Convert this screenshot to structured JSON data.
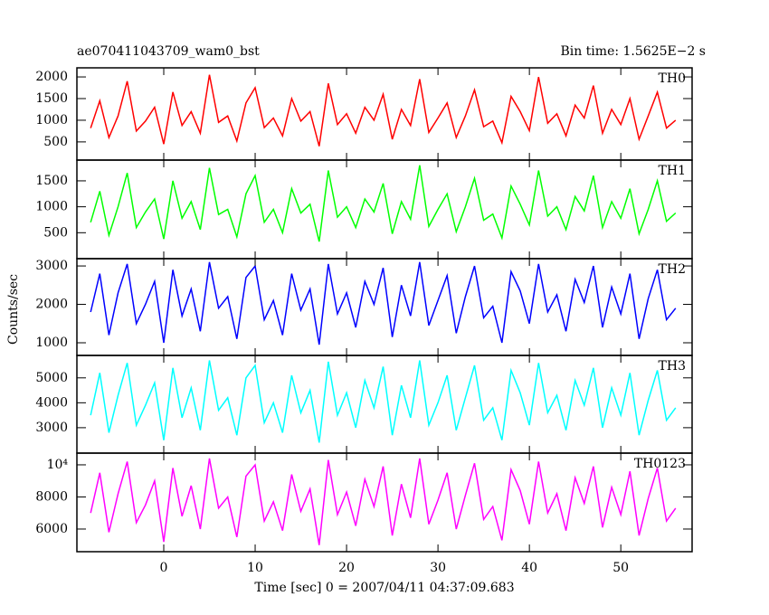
{
  "title": "ae070411043709_wam0_bst",
  "bin_time": "Bin time: 1.5625E−2 s",
  "ylabel": "Counts/sec",
  "xlabel": "Time [sec] 0 = 2007/04/11 04:37:09.683",
  "chart_data": [
    {
      "type": "line",
      "x": [
        -8,
        -7,
        -6,
        -5,
        -4,
        -3,
        -2,
        -1,
        0,
        1,
        2,
        3,
        4,
        5,
        6,
        7,
        8,
        9,
        10,
        11,
        12,
        13,
        14,
        15,
        16,
        17,
        18,
        19,
        20,
        21,
        22,
        23,
        24,
        25,
        26,
        27,
        28,
        29,
        30,
        31,
        32,
        33,
        34,
        35,
        36,
        37,
        38,
        39,
        40,
        41,
        42,
        43,
        44,
        45,
        46,
        47,
        48,
        49,
        50,
        51,
        52,
        53,
        54,
        55,
        56
      ],
      "series": [
        {
          "name": "TH0",
          "color": "#ff0000",
          "values": [
            820,
            1450,
            600,
            1100,
            1900,
            750,
            980,
            1300,
            450,
            1650,
            880,
            1200,
            700,
            2050,
            950,
            1100,
            520,
            1400,
            1750,
            830,
            1050,
            640,
            1500,
            980,
            1200,
            400,
            1850,
            900,
            1150,
            700,
            1300,
            1000,
            1600,
            560,
            1250,
            880,
            1950,
            720,
            1050,
            1400,
            600,
            1100,
            1700,
            850,
            980,
            480,
            1550,
            1200,
            760,
            2000,
            930,
            1150,
            640,
            1350,
            1050,
            1800,
            700,
            1250,
            900,
            1500,
            560,
            1100,
            1650,
            820,
            1000
          ]
        }
      ],
      "xlim": [
        -9.5,
        57.8
      ],
      "xticks": [
        0,
        10,
        20,
        30,
        40,
        50
      ],
      "ylim": [
        80,
        2210
      ],
      "yticks": [
        500,
        1000,
        1500,
        2000
      ]
    },
    {
      "type": "line",
      "x": [
        -8,
        -7,
        -6,
        -5,
        -4,
        -3,
        -2,
        -1,
        0,
        1,
        2,
        3,
        4,
        5,
        6,
        7,
        8,
        9,
        10,
        11,
        12,
        13,
        14,
        15,
        16,
        17,
        18,
        19,
        20,
        21,
        22,
        23,
        24,
        25,
        26,
        27,
        28,
        29,
        30,
        31,
        32,
        33,
        34,
        35,
        36,
        37,
        38,
        39,
        40,
        41,
        42,
        43,
        44,
        45,
        46,
        47,
        48,
        49,
        50,
        51,
        52,
        53,
        54,
        55,
        56
      ],
      "series": [
        {
          "name": "TH1",
          "color": "#00ff00",
          "values": [
            700,
            1300,
            450,
            1000,
            1650,
            600,
            900,
            1150,
            380,
            1500,
            780,
            1100,
            560,
            1750,
            850,
            950,
            420,
            1250,
            1600,
            700,
            950,
            500,
            1350,
            880,
            1050,
            330,
            1700,
            800,
            1000,
            600,
            1150,
            900,
            1450,
            480,
            1100,
            760,
            1800,
            620,
            950,
            1250,
            520,
            1000,
            1550,
            740,
            860,
            400,
            1400,
            1050,
            650,
            1700,
            820,
            1000,
            560,
            1200,
            920,
            1600,
            600,
            1100,
            780,
            1350,
            480,
            950,
            1500,
            720,
            880
          ]
        }
      ],
      "xlim": [
        -9.5,
        57.8
      ],
      "xticks": [
        0,
        10,
        20,
        30,
        40,
        50
      ],
      "ylim": [
        0,
        1900
      ],
      "yticks": [
        500,
        1000,
        1500
      ]
    },
    {
      "type": "line",
      "x": [
        -8,
        -7,
        -6,
        -5,
        -4,
        -3,
        -2,
        -1,
        0,
        1,
        2,
        3,
        4,
        5,
        6,
        7,
        8,
        9,
        10,
        11,
        12,
        13,
        14,
        15,
        16,
        17,
        18,
        19,
        20,
        21,
        22,
        23,
        24,
        25,
        26,
        27,
        28,
        29,
        30,
        31,
        32,
        33,
        34,
        35,
        36,
        37,
        38,
        39,
        40,
        41,
        42,
        43,
        44,
        45,
        46,
        47,
        48,
        49,
        50,
        51,
        52,
        53,
        54,
        55,
        56
      ],
      "series": [
        {
          "name": "TH2",
          "color": "#0000ff",
          "values": [
            1800,
            2800,
            1200,
            2300,
            3050,
            1500,
            2000,
            2600,
            1000,
            2900,
            1700,
            2400,
            1300,
            3100,
            1900,
            2200,
            1100,
            2700,
            3000,
            1600,
            2100,
            1200,
            2800,
            1850,
            2400,
            950,
            3050,
            1750,
            2300,
            1400,
            2600,
            2000,
            2950,
            1150,
            2500,
            1700,
            3100,
            1450,
            2100,
            2750,
            1250,
            2200,
            3000,
            1650,
            1950,
            1000,
            2850,
            2350,
            1500,
            3050,
            1800,
            2250,
            1300,
            2650,
            2050,
            3000,
            1400,
            2450,
            1750,
            2800,
            1100,
            2150,
            2900,
            1600,
            1900
          ]
        }
      ],
      "xlim": [
        -9.5,
        57.8
      ],
      "xticks": [
        0,
        10,
        20,
        30,
        40,
        50
      ],
      "ylim": [
        670,
        3190
      ],
      "yticks": [
        1000,
        2000,
        3000
      ]
    },
    {
      "type": "line",
      "x": [
        -8,
        -7,
        -6,
        -5,
        -4,
        -3,
        -2,
        -1,
        0,
        1,
        2,
        3,
        4,
        5,
        6,
        7,
        8,
        9,
        10,
        11,
        12,
        13,
        14,
        15,
        16,
        17,
        18,
        19,
        20,
        21,
        22,
        23,
        24,
        25,
        26,
        27,
        28,
        29,
        30,
        31,
        32,
        33,
        34,
        35,
        36,
        37,
        38,
        39,
        40,
        41,
        42,
        43,
        44,
        45,
        46,
        47,
        48,
        49,
        50,
        51,
        52,
        53,
        54,
        55,
        56
      ],
      "series": [
        {
          "name": "TH3",
          "color": "#00ffff",
          "values": [
            3500,
            5200,
            2800,
            4300,
            5600,
            3100,
            3900,
            4800,
            2500,
            5400,
            3400,
            4600,
            2900,
            5700,
            3700,
            4200,
            2700,
            5000,
            5500,
            3200,
            4000,
            2800,
            5100,
            3600,
            4500,
            2400,
            5650,
            3500,
            4400,
            3000,
            4900,
            3800,
            5450,
            2700,
            4700,
            3400,
            5700,
            3100,
            4000,
            5100,
            2900,
            4200,
            5500,
            3300,
            3800,
            2500,
            5300,
            4400,
            3100,
            5600,
            3600,
            4300,
            2900,
            4900,
            3900,
            5400,
            3000,
            4600,
            3500,
            5200,
            2700,
            4100,
            5300,
            3300,
            3800
          ]
        }
      ],
      "xlim": [
        -9.5,
        57.8
      ],
      "xticks": [
        0,
        10,
        20,
        30,
        40,
        50
      ],
      "ylim": [
        1980,
        5900
      ],
      "yticks": [
        3000,
        4000,
        5000
      ]
    },
    {
      "type": "line",
      "x": [
        -8,
        -7,
        -6,
        -5,
        -4,
        -3,
        -2,
        -1,
        0,
        1,
        2,
        3,
        4,
        5,
        6,
        7,
        8,
        9,
        10,
        11,
        12,
        13,
        14,
        15,
        16,
        17,
        18,
        19,
        20,
        21,
        22,
        23,
        24,
        25,
        26,
        27,
        28,
        29,
        30,
        31,
        32,
        33,
        34,
        35,
        36,
        37,
        38,
        39,
        40,
        41,
        42,
        43,
        44,
        45,
        46,
        47,
        48,
        49,
        50,
        51,
        52,
        53,
        54,
        55,
        56
      ],
      "series": [
        {
          "name": "TH0123",
          "color": "#ff00ff",
          "values": [
            7000,
            9500,
            5800,
            8200,
            10200,
            6400,
            7500,
            9000,
            5200,
            9800,
            6800,
            8700,
            6000,
            10400,
            7300,
            8000,
            5500,
            9300,
            10000,
            6500,
            7700,
            5900,
            9400,
            7100,
            8500,
            5000,
            10300,
            6900,
            8300,
            6200,
            9100,
            7400,
            9900,
            5600,
            8800,
            6700,
            10400,
            6300,
            7800,
            9500,
            6000,
            8100,
            10100,
            6600,
            7400,
            5300,
            9700,
            8400,
            6300,
            10200,
            7000,
            8200,
            5900,
            9200,
            7600,
            9900,
            6100,
            8600,
            6900,
            9600,
            5600,
            7900,
            9800,
            6500,
            7300
          ]
        }
      ],
      "xlim": [
        -9.5,
        57.8
      ],
      "xticks": [
        0,
        10,
        20,
        30,
        40,
        50
      ],
      "ylim": [
        4590,
        10730
      ],
      "yticks": [
        6000,
        8000,
        {
          "value": 10000,
          "label": "10⁴"
        }
      ]
    }
  ]
}
